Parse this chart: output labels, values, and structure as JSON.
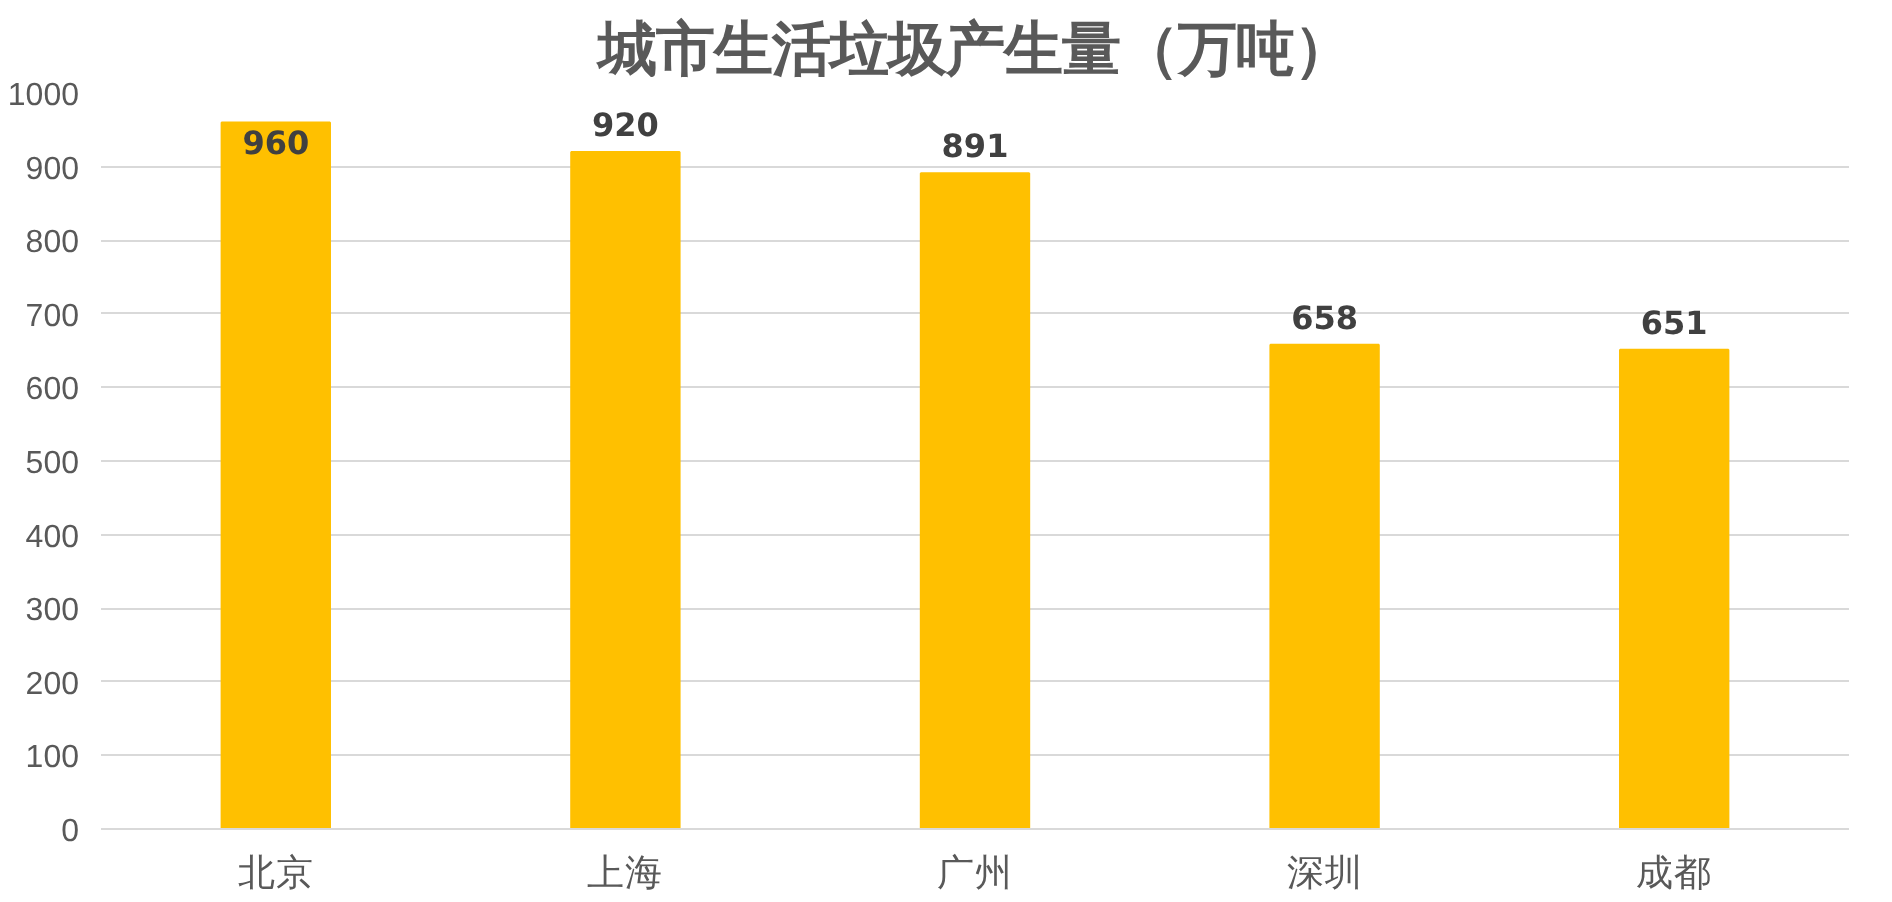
{
  "chart_data": {
    "type": "bar",
    "title": "城市生活垃圾产生量（万吨）",
    "categories": [
      "北京",
      "上海",
      "广州",
      "深圳",
      "成都"
    ],
    "values": [
      960,
      920,
      891,
      658,
      651
    ],
    "color": "#ffc000",
    "ylim": [
      0,
      1000
    ],
    "yticks": [
      0,
      100,
      200,
      300,
      400,
      500,
      600,
      700,
      800,
      900,
      1000
    ],
    "grid": "y",
    "data_labels": true
  }
}
